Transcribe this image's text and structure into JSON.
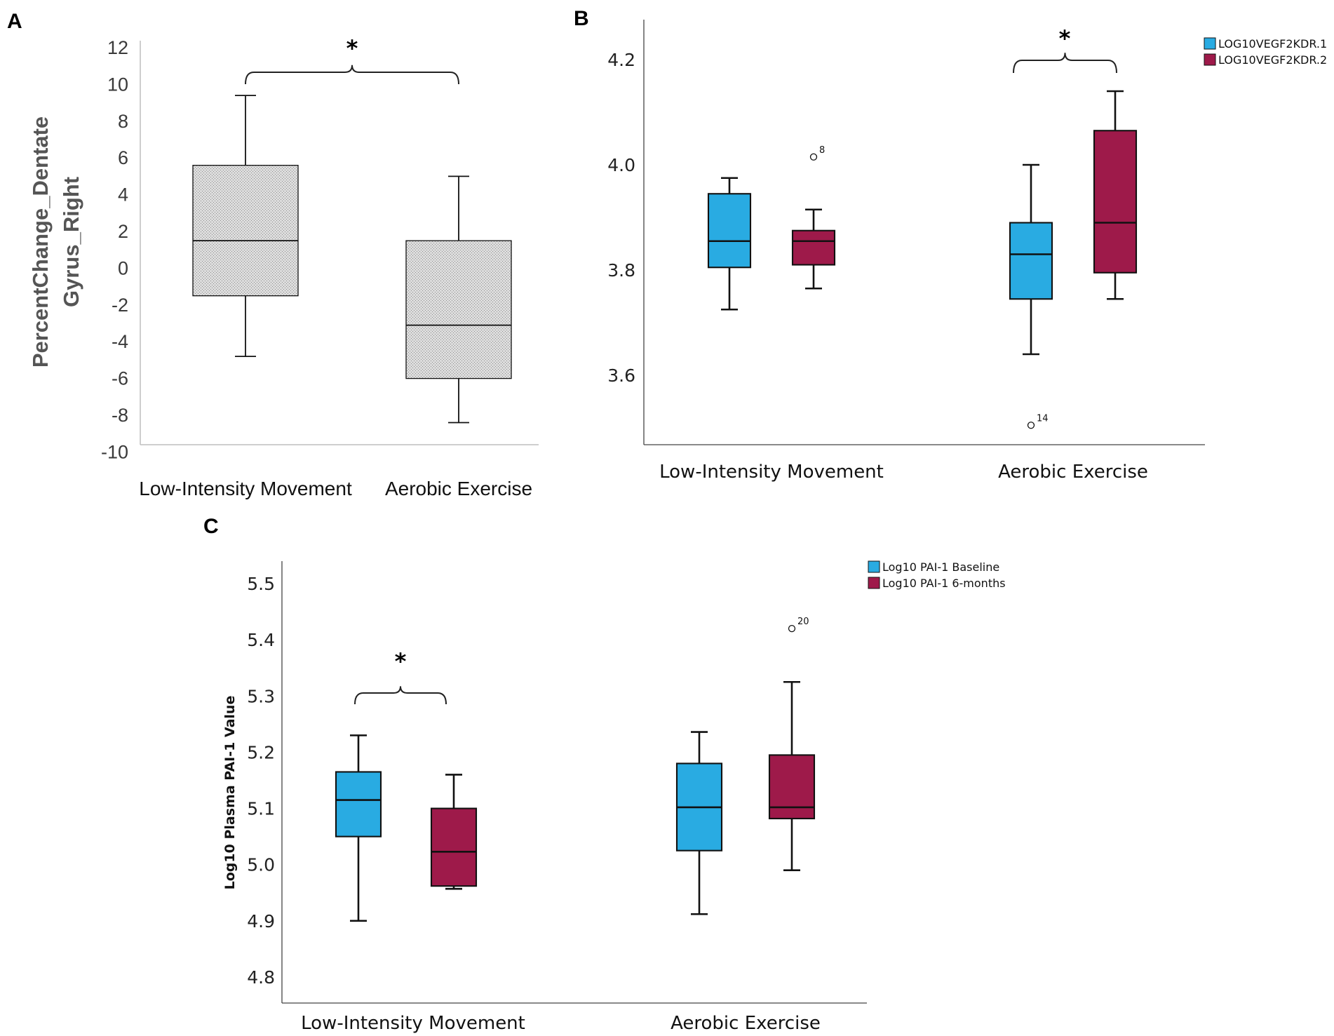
{
  "panels": {
    "A": {
      "letter": "A"
    },
    "B": {
      "letter": "B"
    },
    "C": {
      "letter": "C"
    }
  },
  "colors": {
    "baseline": "#29ABE2",
    "followup": "#9E1A4A",
    "hatched_fill": "#cfcfcf",
    "axis": "#bdbdbd"
  },
  "chart_data": [
    {
      "id": "A",
      "type": "boxplot",
      "title": "",
      "ylabel": "PercentChange_Dentate Gyrus_Right",
      "ylabel_lines": [
        "PercentChange_Dentate",
        "Gyrus_Right"
      ],
      "ylim": [
        -10,
        12
      ],
      "yticks": [
        12,
        10,
        8,
        6,
        4,
        2,
        0,
        -2,
        -4,
        -6,
        -8,
        -10
      ],
      "ytick_labels": [
        "12",
        "10",
        "8",
        "6",
        "4",
        "2",
        "0",
        "-2",
        "-4",
        "-6",
        "-8",
        "-10"
      ],
      "categories": [
        "Low-Intensity Movement",
        "Aerobic Exercise"
      ],
      "series": [
        {
          "name": "PercentChange_Dentate Gyrus_Right",
          "boxes": [
            {
              "min": -4.8,
              "q1": -1.5,
              "median": 1.5,
              "q3": 5.6,
              "max": 9.4
            },
            {
              "min": -8.4,
              "q1": -6.0,
              "median": -3.1,
              "q3": 1.5,
              "max": 5.0
            }
          ]
        }
      ],
      "significance": {
        "label": "*",
        "between": [
          "Low-Intensity Movement",
          "Aerobic Exercise"
        ]
      }
    },
    {
      "id": "B",
      "type": "boxplot",
      "title": "",
      "ylabel": "",
      "ylim": [
        3.47,
        4.25
      ],
      "yticks": [
        4.2,
        4.0,
        3.8,
        3.6
      ],
      "ytick_labels": [
        "4.2",
        "4.0",
        "3.8",
        "3.6"
      ],
      "categories": [
        "Low-Intensity Movement",
        "Aerobic Exercise"
      ],
      "series": [
        {
          "name": "LOG10VEGF2KDR.1",
          "boxes": [
            {
              "min": 3.725,
              "q1": 3.805,
              "median": 3.855,
              "q3": 3.945,
              "max": 3.975
            },
            {
              "min": 3.64,
              "q1": 3.745,
              "median": 3.83,
              "q3": 3.89,
              "max": 4.0,
              "outliers": [
                {
                  "value": 3.505,
                  "label": "14"
                }
              ]
            }
          ]
        },
        {
          "name": "LOG10VEGF2KDR.2",
          "boxes": [
            {
              "min": 3.765,
              "q1": 3.81,
              "median": 3.855,
              "q3": 3.875,
              "max": 3.915,
              "outliers": [
                {
                  "value": 4.015,
                  "label": "8"
                }
              ]
            },
            {
              "min": 3.745,
              "q1": 3.795,
              "median": 3.89,
              "q3": 4.065,
              "max": 4.14
            }
          ]
        }
      ],
      "legend": [
        "LOG10VEGF2KDR.1",
        "LOG10VEGF2KDR.2"
      ],
      "legend_position": "top-right",
      "significance": {
        "label": "*",
        "category": "Aerobic Exercise",
        "between": [
          "LOG10VEGF2KDR.1",
          "LOG10VEGF2KDR.2"
        ]
      }
    },
    {
      "id": "C",
      "type": "boxplot",
      "title": "",
      "ylabel": "Log10 Plasma PAI-1 Value",
      "ylim": [
        4.77,
        5.56
      ],
      "yticks": [
        5.5,
        5.4,
        5.3,
        5.2,
        5.1,
        5.0,
        4.9,
        4.8
      ],
      "ytick_labels": [
        "5.5",
        "5.4",
        "5.3",
        "5.2",
        "5.1",
        "5.0",
        "4.9",
        "4.8"
      ],
      "categories": [
        "Low-Intensity Movement",
        "Aerobic Exercise"
      ],
      "series": [
        {
          "name": "Log10 PAI-1 Baseline",
          "boxes": [
            {
              "min": 4.9,
              "q1": 5.05,
              "median": 5.115,
              "q3": 5.165,
              "max": 5.23
            },
            {
              "min": 4.912,
              "q1": 5.025,
              "median": 5.102,
              "q3": 5.18,
              "max": 5.236
            }
          ]
        },
        {
          "name": "Log10 PAI-1 6-months",
          "boxes": [
            {
              "min": 4.957,
              "q1": 4.962,
              "median": 5.023,
              "q3": 5.1,
              "max": 5.16
            },
            {
              "min": 4.99,
              "q1": 5.082,
              "median": 5.102,
              "q3": 5.195,
              "max": 5.325,
              "outliers": [
                {
                  "value": 5.42,
                  "label": "20"
                }
              ]
            }
          ]
        }
      ],
      "legend": [
        "Log10 PAI-1 Baseline",
        "Log10 PAI-1 6-months"
      ],
      "legend_position": "top-right",
      "significance": {
        "label": "*",
        "category": "Low-Intensity Movement",
        "between": [
          "Log10 PAI-1 Baseline",
          "Log10 PAI-1 6-months"
        ]
      }
    }
  ]
}
